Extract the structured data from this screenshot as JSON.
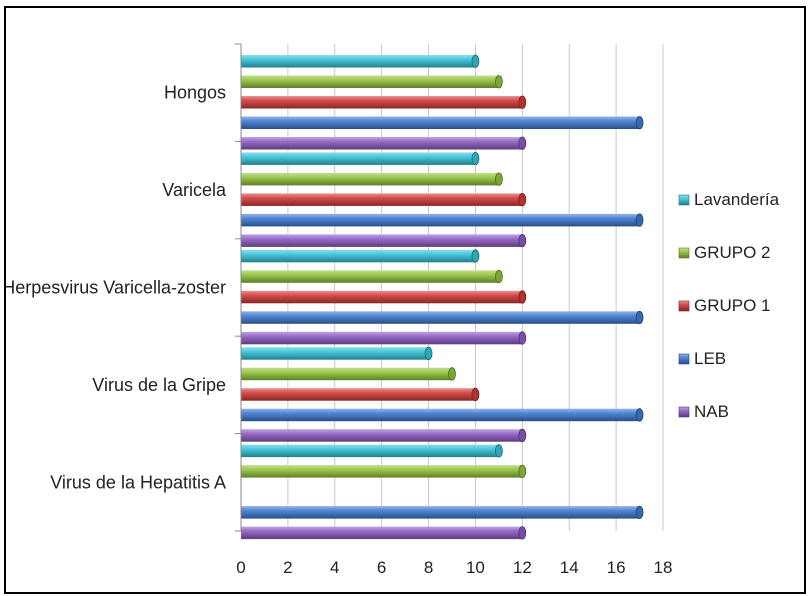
{
  "chart_data": {
    "type": "bar",
    "orientation": "horizontal",
    "categories": [
      "Virus de la Hepatitis A",
      "Virus de la Gripe",
      "Herpesvirus Varicella-zoster",
      "Varicela",
      "Hongos"
    ],
    "series": [
      {
        "name": "NAB",
        "color": "#8e5cc4",
        "values": [
          12,
          12,
          12,
          12,
          12
        ]
      },
      {
        "name": "LEB",
        "color": "#3f79d0",
        "values": [
          17,
          17,
          17,
          17,
          17
        ]
      },
      {
        "name": "GRUPO 1",
        "color": "#d23a3a",
        "values": [
          0,
          10,
          12,
          12,
          12
        ]
      },
      {
        "name": "GRUPO 2",
        "color": "#92c43c",
        "values": [
          12,
          9,
          11,
          11,
          11
        ]
      },
      {
        "name": "Lavandería",
        "color": "#35c3d8",
        "values": [
          11,
          8,
          10,
          10,
          10
        ]
      }
    ],
    "xlim": [
      0,
      18
    ],
    "x_ticks": [
      "0",
      "2",
      "4",
      "6",
      "8",
      "10",
      "12",
      "14",
      "16",
      "18"
    ],
    "grid": true,
    "legend_position": "right",
    "legend_order": [
      "Lavandería",
      "GRUPO 2",
      "GRUPO 1",
      "LEB",
      "NAB"
    ],
    "bar_style": "3d-cylinder"
  }
}
